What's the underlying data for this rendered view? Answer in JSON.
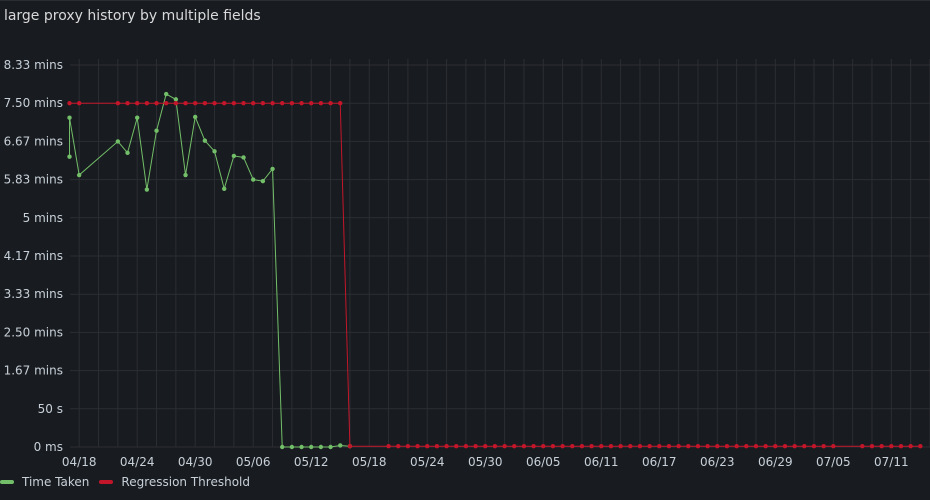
{
  "panel": {
    "title": "t large proxy history by multiple fields"
  },
  "colors": {
    "time_taken": "#73bf69",
    "regression_threshold": "#c4162a",
    "grid": "#2b2e33",
    "text": "#c7d0d9"
  },
  "legend": {
    "items": [
      {
        "label": "Time Taken",
        "color": "#73bf69"
      },
      {
        "label": "Regression Threshold",
        "color": "#c4162a"
      }
    ]
  },
  "chart_data": {
    "type": "line",
    "y_unit": "seconds",
    "ylim": [
      0,
      520
    ],
    "y_ticks": [
      {
        "value": 0,
        "label": "0 ms"
      },
      {
        "value": 50,
        "label": "50 s"
      },
      {
        "value": 100,
        "label": "1.67 mins"
      },
      {
        "value": 150,
        "label": "2.50 mins"
      },
      {
        "value": 200,
        "label": "3.33 mins"
      },
      {
        "value": 250,
        "label": "4.17 mins"
      },
      {
        "value": 300,
        "label": "5 mins"
      },
      {
        "value": 350,
        "label": "5.83 mins"
      },
      {
        "value": 400,
        "label": "6.67 mins"
      },
      {
        "value": 450,
        "label": "7.50 mins"
      },
      {
        "value": 500,
        "label": "8.33 mins"
      }
    ],
    "xlim": [
      "2024-04-17",
      "2024-07-15"
    ],
    "x_ticks": [
      {
        "date": "2024-04-18",
        "label": "04/18"
      },
      {
        "date": "2024-04-24",
        "label": "04/24"
      },
      {
        "date": "2024-04-30",
        "label": "04/30"
      },
      {
        "date": "2024-05-06",
        "label": "05/06"
      },
      {
        "date": "2024-05-12",
        "label": "05/12"
      },
      {
        "date": "2024-05-18",
        "label": "05/18"
      },
      {
        "date": "2024-05-24",
        "label": "05/24"
      },
      {
        "date": "2024-05-30",
        "label": "05/30"
      },
      {
        "date": "2024-06-05",
        "label": "06/05"
      },
      {
        "date": "2024-06-11",
        "label": "06/11"
      },
      {
        "date": "2024-06-17",
        "label": "06/17"
      },
      {
        "date": "2024-06-23",
        "label": "06/23"
      },
      {
        "date": "2024-06-29",
        "label": "06/29"
      },
      {
        "date": "2024-07-05",
        "label": "07/05"
      },
      {
        "date": "2024-07-11",
        "label": "07/11"
      }
    ],
    "grid": true,
    "legend_position": "bottom-left",
    "series": [
      {
        "name": "Time Taken",
        "color": "#73bf69",
        "points": [
          [
            "2024-04-17",
            380
          ],
          [
            "2024-04-17",
            431
          ],
          [
            "2024-04-18",
            356
          ],
          [
            "2024-04-22",
            400
          ],
          [
            "2024-04-23",
            385
          ],
          [
            "2024-04-24",
            431
          ],
          [
            "2024-04-25",
            337
          ],
          [
            "2024-04-26",
            414
          ],
          [
            "2024-04-27",
            462
          ],
          [
            "2024-04-28",
            455
          ],
          [
            "2024-04-29",
            356
          ],
          [
            "2024-04-30",
            432
          ],
          [
            "2024-05-01",
            401
          ],
          [
            "2024-05-02",
            387
          ],
          [
            "2024-05-03",
            338
          ],
          [
            "2024-05-04",
            381
          ],
          [
            "2024-05-05",
            379
          ],
          [
            "2024-05-06",
            350
          ],
          [
            "2024-05-07",
            348
          ],
          [
            "2024-05-08",
            364
          ],
          [
            "2024-05-09",
            0
          ],
          [
            "2024-05-10",
            0
          ],
          [
            "2024-05-11",
            0
          ],
          [
            "2024-05-12",
            0
          ],
          [
            "2024-05-13",
            0
          ],
          [
            "2024-05-14",
            0
          ],
          [
            "2024-05-15",
            2
          ],
          [
            "2024-05-16",
            1
          ]
        ]
      },
      {
        "name": "Regression Threshold",
        "color": "#c4162a",
        "points": [
          [
            "2024-04-17",
            450
          ],
          [
            "2024-04-18",
            450
          ],
          [
            "2024-04-22",
            450
          ],
          [
            "2024-04-23",
            450
          ],
          [
            "2024-04-24",
            450
          ],
          [
            "2024-04-25",
            450
          ],
          [
            "2024-04-26",
            450
          ],
          [
            "2024-04-27",
            450
          ],
          [
            "2024-04-28",
            450
          ],
          [
            "2024-04-29",
            450
          ],
          [
            "2024-04-30",
            450
          ],
          [
            "2024-05-01",
            450
          ],
          [
            "2024-05-02",
            450
          ],
          [
            "2024-05-03",
            450
          ],
          [
            "2024-05-04",
            450
          ],
          [
            "2024-05-05",
            450
          ],
          [
            "2024-05-06",
            450
          ],
          [
            "2024-05-07",
            450
          ],
          [
            "2024-05-08",
            450
          ],
          [
            "2024-05-09",
            450
          ],
          [
            "2024-05-10",
            450
          ],
          [
            "2024-05-11",
            450
          ],
          [
            "2024-05-12",
            450
          ],
          [
            "2024-05-13",
            450
          ],
          [
            "2024-05-14",
            450
          ],
          [
            "2024-05-15",
            450
          ],
          [
            "2024-05-16",
            1
          ],
          [
            "2024-05-20",
            1
          ],
          [
            "2024-05-21",
            1
          ],
          [
            "2024-05-22",
            1
          ],
          [
            "2024-05-23",
            1
          ],
          [
            "2024-05-24",
            1
          ],
          [
            "2024-05-25",
            1
          ],
          [
            "2024-05-26",
            1
          ],
          [
            "2024-05-27",
            1
          ],
          [
            "2024-05-28",
            1
          ],
          [
            "2024-05-29",
            1
          ],
          [
            "2024-05-30",
            1
          ],
          [
            "2024-05-31",
            1
          ],
          [
            "2024-06-01",
            1
          ],
          [
            "2024-06-02",
            1
          ],
          [
            "2024-06-03",
            1
          ],
          [
            "2024-06-04",
            1
          ],
          [
            "2024-06-05",
            1
          ],
          [
            "2024-06-06",
            1
          ],
          [
            "2024-06-07",
            1
          ],
          [
            "2024-06-08",
            1
          ],
          [
            "2024-06-09",
            1
          ],
          [
            "2024-06-10",
            1
          ],
          [
            "2024-06-11",
            1
          ],
          [
            "2024-06-12",
            1
          ],
          [
            "2024-06-13",
            1
          ],
          [
            "2024-06-14",
            1
          ],
          [
            "2024-06-15",
            1
          ],
          [
            "2024-06-16",
            1
          ],
          [
            "2024-06-17",
            1
          ],
          [
            "2024-06-18",
            1
          ],
          [
            "2024-06-19",
            1
          ],
          [
            "2024-06-20",
            1
          ],
          [
            "2024-06-21",
            1
          ],
          [
            "2024-06-22",
            1
          ],
          [
            "2024-06-23",
            1
          ],
          [
            "2024-06-24",
            1
          ],
          [
            "2024-06-25",
            1
          ],
          [
            "2024-06-26",
            1
          ],
          [
            "2024-06-27",
            1
          ],
          [
            "2024-06-28",
            1
          ],
          [
            "2024-06-29",
            1
          ],
          [
            "2024-06-30",
            1
          ],
          [
            "2024-07-01",
            1
          ],
          [
            "2024-07-02",
            1
          ],
          [
            "2024-07-03",
            1
          ],
          [
            "2024-07-04",
            1
          ],
          [
            "2024-07-05",
            1
          ],
          [
            "2024-07-08",
            1
          ],
          [
            "2024-07-09",
            1
          ],
          [
            "2024-07-10",
            1
          ],
          [
            "2024-07-11",
            1
          ],
          [
            "2024-07-12",
            1
          ],
          [
            "2024-07-13",
            1
          ],
          [
            "2024-07-14",
            1
          ]
        ]
      }
    ]
  }
}
